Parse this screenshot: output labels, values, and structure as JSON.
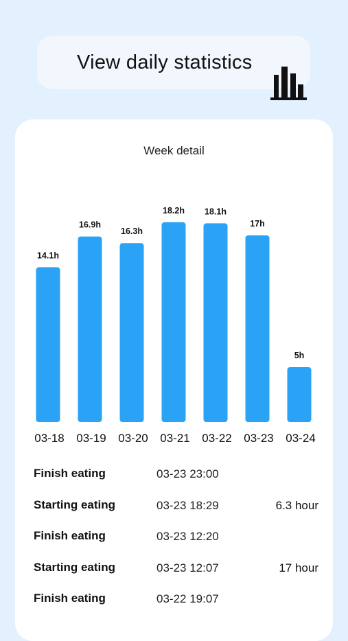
{
  "header": {
    "title": "View daily statistics",
    "icon": "bar-chart-icon"
  },
  "card": {
    "title": "Week detail"
  },
  "chart_data": {
    "type": "bar",
    "title": "Week detail",
    "categories": [
      "03-18",
      "03-19",
      "03-20",
      "03-21",
      "03-22",
      "03-23",
      "03-24"
    ],
    "values": [
      14.1,
      16.9,
      16.3,
      18.2,
      18.1,
      17,
      5
    ],
    "labels": [
      "14.1h",
      "16.9h",
      "16.3h",
      "18.2h",
      "18.1h",
      "17h",
      "5h"
    ],
    "bar_color": "#2aa2f6",
    "grid": false,
    "axes_visible": false
  },
  "records": [
    {
      "label": "Finish eating",
      "time": "03-23 23:00",
      "duration": ""
    },
    {
      "label": "Starting eating",
      "time": "03-23 18:29",
      "duration": "6.3 hour"
    },
    {
      "label": "Finish eating",
      "time": "03-23 12:20",
      "duration": ""
    },
    {
      "label": "Starting eating",
      "time": "03-23 12:07",
      "duration": "17 hour"
    },
    {
      "label": "Finish eating",
      "time": "03-22 19:07",
      "duration": ""
    }
  ],
  "colors": {
    "background": "#e3f0fd",
    "card": "#ffffff",
    "header_pill": "#f2f7fd",
    "accent": "#2aa2f6"
  }
}
